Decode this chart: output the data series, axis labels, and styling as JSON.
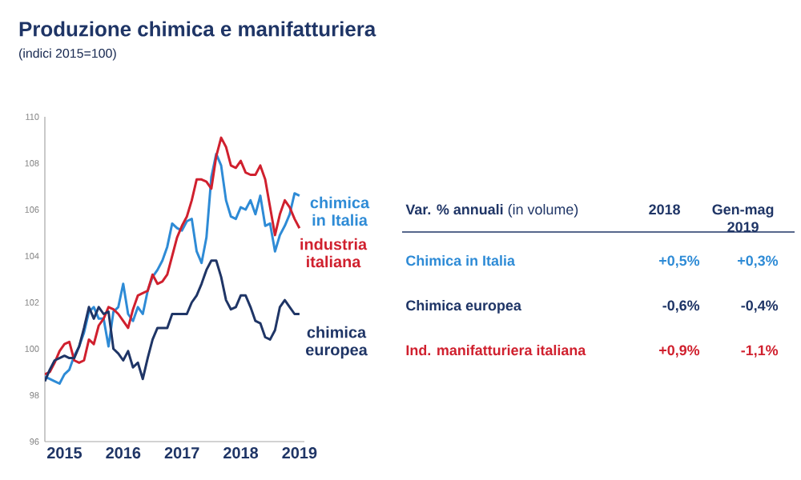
{
  "chart_data": [
    {
      "type": "line",
      "title": "Produzione chimica e manifatturiera",
      "subtitle": "(indici 2015=100)",
      "x": [
        "2015-01",
        "2015-02",
        "2015-03",
        "2015-04",
        "2015-05",
        "2015-06",
        "2015-07",
        "2015-08",
        "2015-09",
        "2015-10",
        "2015-11",
        "2015-12",
        "2016-01",
        "2016-02",
        "2016-03",
        "2016-04",
        "2016-05",
        "2016-06",
        "2016-07",
        "2016-08",
        "2016-09",
        "2016-10",
        "2016-11",
        "2016-12",
        "2017-01",
        "2017-02",
        "2017-03",
        "2017-04",
        "2017-05",
        "2017-06",
        "2017-07",
        "2017-08",
        "2017-09",
        "2017-10",
        "2017-11",
        "2017-12",
        "2018-01",
        "2018-02",
        "2018-03",
        "2018-04",
        "2018-05",
        "2018-06",
        "2018-07",
        "2018-08",
        "2018-09",
        "2018-10",
        "2018-11",
        "2018-12",
        "2019-01",
        "2019-02",
        "2019-03",
        "2019-04",
        "2019-05"
      ],
      "series": [
        {
          "name": "chimica in Italia",
          "color": "#2e8bd6",
          "values": [
            98.8,
            98.7,
            98.6,
            98.5,
            98.9,
            99.1,
            99.7,
            100.1,
            100.7,
            101.6,
            101.8,
            101.3,
            101.3,
            100.1,
            101.6,
            101.8,
            102.8,
            101.5,
            101.2,
            101.8,
            101.5,
            102.5,
            103.1,
            103.4,
            103.8,
            104.4,
            105.4,
            105.2,
            105.1,
            105.5,
            105.6,
            104.2,
            103.7,
            104.8,
            107.4,
            108.4,
            107.9,
            106.4,
            105.7,
            105.6,
            106.1,
            106.0,
            106.4,
            105.8,
            106.6,
            105.3,
            105.4,
            104.2,
            104.9,
            105.3,
            105.8,
            106.7,
            106.6
          ]
        },
        {
          "name": "industria italiana",
          "color": "#d0202e",
          "values": [
            98.9,
            99.0,
            99.4,
            99.9,
            100.2,
            100.3,
            99.5,
            99.4,
            99.5,
            100.4,
            100.2,
            101.0,
            101.3,
            101.8,
            101.7,
            101.5,
            101.2,
            100.9,
            101.7,
            102.3,
            102.4,
            102.5,
            103.2,
            102.8,
            102.9,
            103.2,
            104.0,
            104.8,
            105.3,
            105.7,
            106.4,
            107.3,
            107.3,
            107.2,
            106.9,
            108.3,
            109.1,
            108.7,
            107.9,
            107.8,
            108.1,
            107.6,
            107.5,
            107.5,
            107.9,
            107.3,
            106.1,
            104.9,
            105.8,
            106.4,
            106.1,
            105.6,
            105.2
          ]
        },
        {
          "name": "chimica europea",
          "color": "#1f3566",
          "values": [
            98.6,
            99.1,
            99.5,
            99.6,
            99.7,
            99.6,
            99.6,
            100.1,
            100.9,
            101.8,
            101.3,
            101.8,
            101.5,
            101.6,
            100.0,
            99.8,
            99.5,
            99.9,
            99.2,
            99.4,
            98.7,
            99.6,
            100.4,
            100.9,
            100.9,
            100.9,
            101.5,
            101.5,
            101.5,
            101.5,
            102.0,
            102.3,
            102.8,
            103.4,
            103.8,
            103.8,
            103.1,
            102.1,
            101.7,
            101.8,
            102.3,
            102.3,
            101.8,
            101.2,
            101.1,
            100.5,
            100.4,
            100.8,
            101.8,
            102.1,
            101.8,
            101.5,
            101.5
          ]
        }
      ],
      "xlim": [
        "2015-01",
        "2019-06"
      ],
      "xticks": [
        {
          "value": "2015-05",
          "label": "2015"
        },
        {
          "value": "2016-05",
          "label": "2016"
        },
        {
          "value": "2017-05",
          "label": "2017"
        },
        {
          "value": "2018-05",
          "label": "2018"
        },
        {
          "value": "2019-05",
          "label": "2019"
        }
      ],
      "ylim": [
        96,
        110
      ],
      "yticks": [
        96,
        98,
        100,
        102,
        104,
        106,
        108,
        110
      ],
      "marker": "none",
      "line_style": "solid"
    },
    {
      "type": "other",
      "title": "**Var. % annuali** (in volume)",
      "categories": [
        "Chimica in Italia",
        "Chimica europea",
        "Ind. manifatturiera italiana"
      ],
      "colors": [
        "#2e8bd6",
        "#1f3566",
        "#d0202e"
      ],
      "series": [
        {
          "name": "2018",
          "values": [
            0.5,
            -0.6,
            0.9
          ],
          "value_labels": [
            "+0,5%",
            "-0,6%",
            "+0,9%"
          ]
        },
        {
          "name": "Gen-mag 2019",
          "values": [
            0.3,
            -0.4,
            -1.1
          ],
          "value_labels": [
            "+0,3%",
            "-0,4%",
            "-1,1%"
          ]
        }
      ]
    }
  ]
}
